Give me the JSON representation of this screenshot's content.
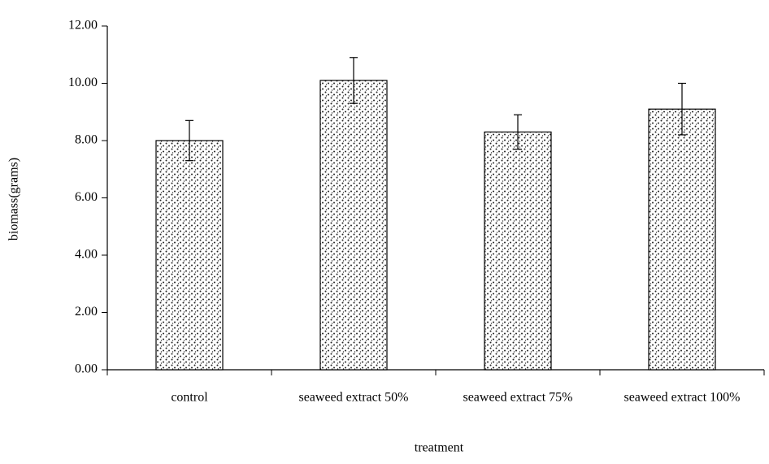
{
  "chart_data": {
    "type": "bar",
    "x_label": "treatment",
    "y_label": "biomass(grams)",
    "categories": [
      "control",
      "seaweed extract 50%",
      "seaweed extract 75%",
      "seaweed extract 100%"
    ],
    "values": [
      8.0,
      10.1,
      8.3,
      9.1
    ],
    "errors": [
      0.7,
      0.8,
      0.6,
      0.9
    ],
    "ylim": [
      0,
      12
    ],
    "yticks": [
      {
        "value": 0,
        "label": "0.00"
      },
      {
        "value": 2,
        "label": "2.00"
      },
      {
        "value": 4,
        "label": "4.00"
      },
      {
        "value": 6,
        "label": "6.00"
      },
      {
        "value": 8,
        "label": "8.00"
      },
      {
        "value": 10,
        "label": "10.00"
      },
      {
        "value": 12,
        "label": "12.00"
      }
    ]
  }
}
